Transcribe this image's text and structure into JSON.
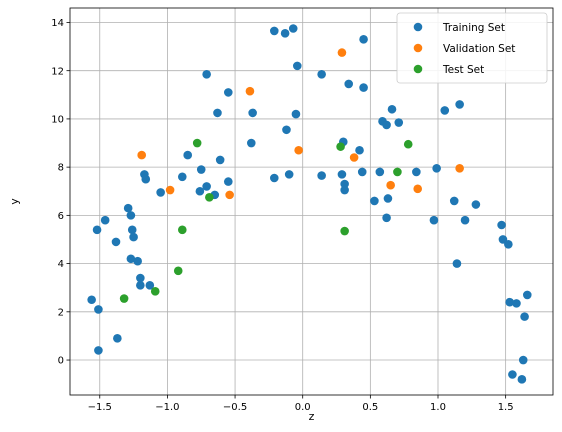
{
  "chart_data": {
    "type": "scatter",
    "xlabel": "z",
    "ylabel": "y",
    "xlim": [
      -1.72,
      1.85
    ],
    "ylim": [
      -1.45,
      14.6
    ],
    "xticks": [
      -1.5,
      -1.0,
      -0.5,
      0.0,
      0.5,
      1.0,
      1.5
    ],
    "xtick_labels": [
      "−1.5",
      "−1.0",
      "−0.5",
      "0.0",
      "0.5",
      "1.0",
      "1.5"
    ],
    "yticks": [
      0,
      2,
      4,
      6,
      8,
      10,
      12,
      14
    ],
    "ytick_labels": [
      "0",
      "2",
      "4",
      "6",
      "8",
      "10",
      "12",
      "14"
    ],
    "grid": true,
    "legend_position": "top-right",
    "series": [
      {
        "name": "Training Set",
        "color": "#1f77b4",
        "points": [
          [
            -1.56,
            2.5
          ],
          [
            -1.52,
            5.4
          ],
          [
            -1.51,
            2.1
          ],
          [
            -1.51,
            0.4
          ],
          [
            -1.46,
            5.8
          ],
          [
            -1.38,
            4.9
          ],
          [
            -1.37,
            0.9
          ],
          [
            -1.29,
            6.3
          ],
          [
            -1.27,
            4.2
          ],
          [
            -1.27,
            6.0
          ],
          [
            -1.26,
            5.4
          ],
          [
            -1.25,
            5.1
          ],
          [
            -1.22,
            4.1
          ],
          [
            -1.2,
            3.4
          ],
          [
            -1.2,
            3.1
          ],
          [
            -1.17,
            7.7
          ],
          [
            -1.16,
            7.5
          ],
          [
            -1.13,
            3.1
          ],
          [
            -1.05,
            6.95
          ],
          [
            -0.89,
            7.6
          ],
          [
            -0.85,
            8.5
          ],
          [
            -0.76,
            7.0
          ],
          [
            -0.75,
            7.9
          ],
          [
            -0.71,
            11.85
          ],
          [
            -0.71,
            7.2
          ],
          [
            -0.65,
            6.85
          ],
          [
            -0.63,
            10.25
          ],
          [
            -0.61,
            8.3
          ],
          [
            -0.55,
            11.1
          ],
          [
            -0.55,
            7.4
          ],
          [
            -0.38,
            9.0
          ],
          [
            -0.37,
            10.25
          ],
          [
            -0.21,
            13.65
          ],
          [
            -0.21,
            7.55
          ],
          [
            -0.13,
            13.55
          ],
          [
            -0.12,
            9.55
          ],
          [
            -0.1,
            7.7
          ],
          [
            -0.07,
            13.75
          ],
          [
            -0.05,
            10.2
          ],
          [
            -0.04,
            12.2
          ],
          [
            0.14,
            11.85
          ],
          [
            0.14,
            7.65
          ],
          [
            0.29,
            7.7
          ],
          [
            0.3,
            9.05
          ],
          [
            0.31,
            7.3
          ],
          [
            0.31,
            7.05
          ],
          [
            0.34,
            11.45
          ],
          [
            0.42,
            8.7
          ],
          [
            0.44,
            7.8
          ],
          [
            0.45,
            13.3
          ],
          [
            0.45,
            11.3
          ],
          [
            0.53,
            6.6
          ],
          [
            0.57,
            7.8
          ],
          [
            0.59,
            9.9
          ],
          [
            0.62,
            9.75
          ],
          [
            0.62,
            5.9
          ],
          [
            0.63,
            6.7
          ],
          [
            0.66,
            10.4
          ],
          [
            0.71,
            9.85
          ],
          [
            0.84,
            7.8
          ],
          [
            0.97,
            5.8
          ],
          [
            0.99,
            7.95
          ],
          [
            1.05,
            10.35
          ],
          [
            1.12,
            6.6
          ],
          [
            1.14,
            4.0
          ],
          [
            1.16,
            10.6
          ],
          [
            1.2,
            5.8
          ],
          [
            1.28,
            6.45
          ],
          [
            1.47,
            5.6
          ],
          [
            1.48,
            5.0
          ],
          [
            1.52,
            4.8
          ],
          [
            1.53,
            2.4
          ],
          [
            1.55,
            -0.6
          ],
          [
            1.58,
            2.35
          ],
          [
            1.62,
            -0.8
          ],
          [
            1.63,
            0.0
          ],
          [
            1.64,
            1.8
          ],
          [
            1.66,
            2.7
          ]
        ]
      },
      {
        "name": "Validation Set",
        "color": "#ff7f0e",
        "points": [
          [
            -1.19,
            8.5
          ],
          [
            -0.98,
            7.05
          ],
          [
            -0.54,
            6.85
          ],
          [
            -0.39,
            11.15
          ],
          [
            -0.03,
            8.7
          ],
          [
            0.29,
            12.75
          ],
          [
            0.38,
            8.4
          ],
          [
            0.65,
            7.25
          ],
          [
            0.85,
            7.1
          ],
          [
            1.16,
            7.95
          ]
        ]
      },
      {
        "name": "Test Set",
        "color": "#2ca02c",
        "points": [
          [
            -1.32,
            2.55
          ],
          [
            -1.09,
            2.85
          ],
          [
            -0.92,
            3.7
          ],
          [
            -0.89,
            5.4
          ],
          [
            -0.78,
            9.0
          ],
          [
            -0.69,
            6.75
          ],
          [
            0.28,
            8.85
          ],
          [
            0.31,
            5.35
          ],
          [
            0.7,
            7.8
          ],
          [
            0.78,
            8.95
          ]
        ]
      }
    ]
  }
}
